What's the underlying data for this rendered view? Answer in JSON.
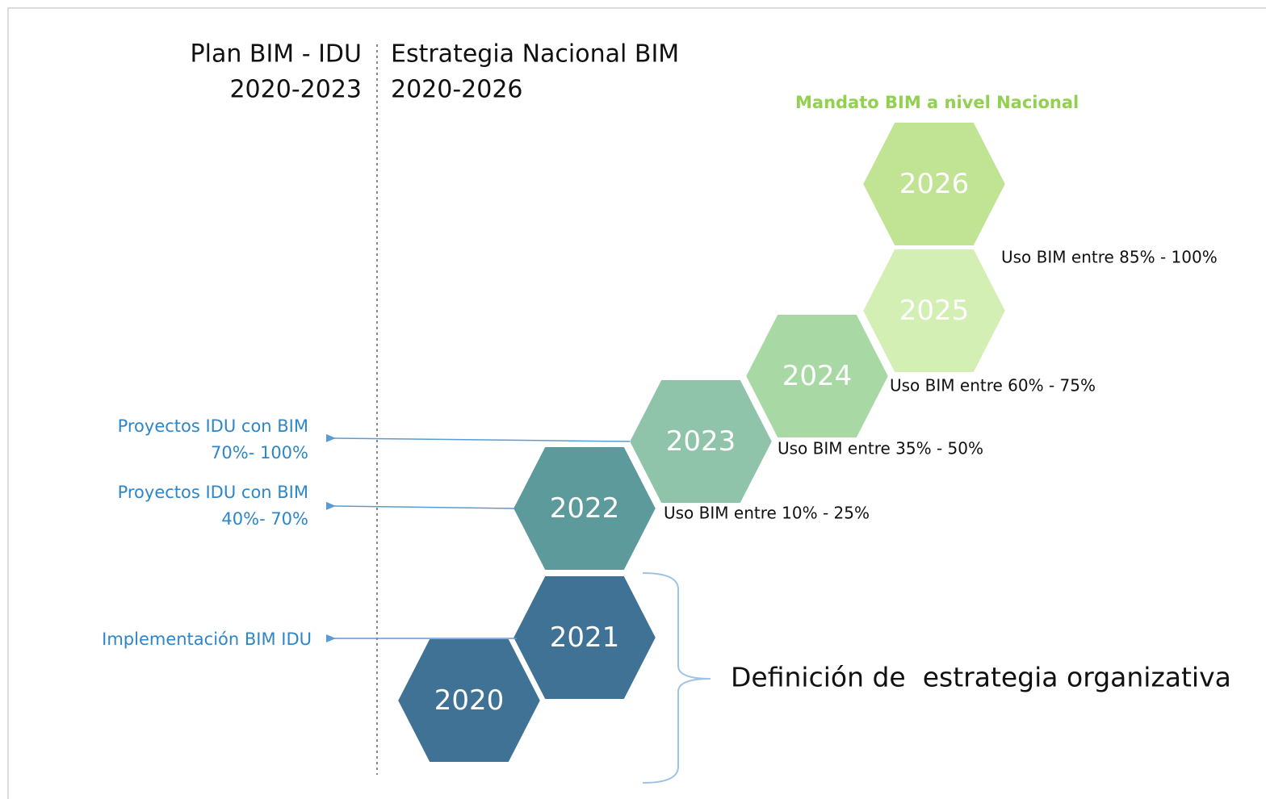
{
  "header": {
    "left": {
      "title": "Plan BIM - IDU",
      "period": "2020-2023"
    },
    "right": {
      "title": "Estrategia Nacional BIM",
      "period": "2020-2026"
    }
  },
  "mandate": "Mandato BIM a nivel Nacional",
  "hexagons": [
    {
      "label": "2020"
    },
    {
      "label": "2021"
    },
    {
      "label": "2022"
    },
    {
      "label": "2023"
    },
    {
      "label": "2024"
    },
    {
      "label": "2025"
    },
    {
      "label": "2026"
    }
  ],
  "usage_notes": [
    "Uso BIM entre 10% - 25%",
    "Uso BIM entre 35% - 50%",
    "Uso BIM entre 60% - 75%",
    "Uso BIM entre 85% - 100%"
  ],
  "idu_notes": [
    {
      "lines": [
        "Proyectos IDU con BIM",
        "70%- 100%"
      ]
    },
    {
      "lines": [
        "Proyectos IDU con BIM",
        "40%- 70%"
      ]
    },
    {
      "lines": [
        "Implementación BIM IDU"
      ]
    }
  ],
  "strategy": "Definición de  estrategia organizativa"
}
